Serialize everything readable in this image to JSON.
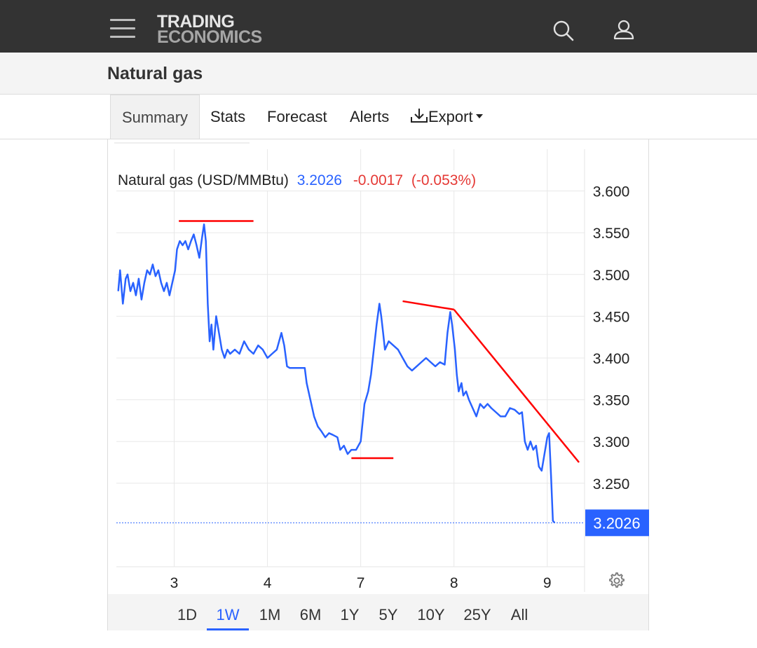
{
  "header": {
    "logo_line1": "TRADING",
    "logo_line2": "ECONOMICS",
    "menu_icon": "hamburger-menu-icon",
    "search_icon": "search-icon",
    "user_icon": "user-icon"
  },
  "page": {
    "title": "Natural gas"
  },
  "tabs": [
    {
      "label": "Summary",
      "active": true
    },
    {
      "label": "Stats"
    },
    {
      "label": "Forecast"
    },
    {
      "label": "Alerts"
    },
    {
      "label": "Export",
      "icon": "download-icon",
      "dropdown": true
    }
  ],
  "chart_data": {
    "type": "line",
    "title": "Natural gas (USD/MMBtu)",
    "last_value": "3.2026",
    "change": "-0.0017",
    "change_pct": "(-0.053%)",
    "x_tick_labels": [
      "3",
      "4",
      "7",
      "8",
      "9"
    ],
    "x_ticks": [
      0.6,
      1.6,
      2.6,
      3.6,
      4.6
    ],
    "xlim": [
      -0.02,
      5.0
    ],
    "y_tick_labels": [
      "3.600",
      "3.550",
      "3.500",
      "3.450",
      "3.400",
      "3.350",
      "3.300",
      "3.250"
    ],
    "y_ticks": [
      3.6,
      3.55,
      3.5,
      3.45,
      3.4,
      3.35,
      3.3,
      3.25
    ],
    "ylim": [
      3.15,
      3.65
    ],
    "grid": true,
    "colors": {
      "line": "#2962ff",
      "trendlines": "#ff0000",
      "negative": "#e53935",
      "price_tag_bg": "#2962ff"
    },
    "series": [
      {
        "values": [
          [
            0.0,
            3.48
          ],
          [
            0.02,
            3.505
          ],
          [
            0.05,
            3.465
          ],
          [
            0.08,
            3.495
          ],
          [
            0.1,
            3.5
          ],
          [
            0.13,
            3.48
          ],
          [
            0.16,
            3.49
          ],
          [
            0.19,
            3.475
          ],
          [
            0.22,
            3.495
          ],
          [
            0.25,
            3.47
          ],
          [
            0.28,
            3.49
          ],
          [
            0.31,
            3.505
          ],
          [
            0.34,
            3.5
          ],
          [
            0.37,
            3.512
          ],
          [
            0.4,
            3.498
          ],
          [
            0.43,
            3.505
          ],
          [
            0.46,
            3.49
          ],
          [
            0.49,
            3.48
          ],
          [
            0.52,
            3.49
          ],
          [
            0.55,
            3.475
          ],
          [
            0.58,
            3.49
          ],
          [
            0.61,
            3.505
          ],
          [
            0.63,
            3.53
          ],
          [
            0.66,
            3.54
          ],
          [
            0.69,
            3.535
          ],
          [
            0.72,
            3.54
          ],
          [
            0.75,
            3.53
          ],
          [
            0.78,
            3.54
          ],
          [
            0.81,
            3.548
          ],
          [
            0.84,
            3.535
          ],
          [
            0.87,
            3.52
          ],
          [
            0.9,
            3.545
          ],
          [
            0.92,
            3.56
          ],
          [
            0.94,
            3.54
          ],
          [
            0.96,
            3.465
          ],
          [
            0.98,
            3.42
          ],
          [
            1.0,
            3.44
          ],
          [
            1.02,
            3.41
          ],
          [
            1.05,
            3.45
          ],
          [
            1.08,
            3.43
          ],
          [
            1.11,
            3.41
          ],
          [
            1.14,
            3.4
          ],
          [
            1.17,
            3.41
          ],
          [
            1.2,
            3.405
          ],
          [
            1.25,
            3.41
          ],
          [
            1.3,
            3.405
          ],
          [
            1.35,
            3.42
          ],
          [
            1.4,
            3.41
          ],
          [
            1.45,
            3.405
          ],
          [
            1.5,
            3.415
          ],
          [
            1.55,
            3.41
          ],
          [
            1.6,
            3.4
          ],
          [
            1.65,
            3.405
          ],
          [
            1.7,
            3.41
          ],
          [
            1.75,
            3.43
          ],
          [
            1.78,
            3.415
          ],
          [
            1.81,
            3.39
          ],
          [
            1.84,
            3.388
          ],
          [
            1.9,
            3.388
          ],
          [
            1.95,
            3.388
          ],
          [
            2.0,
            3.388
          ],
          [
            2.02,
            3.37
          ],
          [
            2.06,
            3.35
          ],
          [
            2.1,
            3.33
          ],
          [
            2.14,
            3.318
          ],
          [
            2.18,
            3.312
          ],
          [
            2.22,
            3.305
          ],
          [
            2.26,
            3.31
          ],
          [
            2.3,
            3.308
          ],
          [
            2.35,
            3.305
          ],
          [
            2.38,
            3.29
          ],
          [
            2.42,
            3.295
          ],
          [
            2.46,
            3.285
          ],
          [
            2.5,
            3.29
          ],
          [
            2.55,
            3.29
          ],
          [
            2.6,
            3.3
          ],
          [
            2.64,
            3.345
          ],
          [
            2.68,
            3.36
          ],
          [
            2.71,
            3.38
          ],
          [
            2.74,
            3.41
          ],
          [
            2.77,
            3.44
          ],
          [
            2.8,
            3.465
          ],
          [
            2.82,
            3.45
          ],
          [
            2.84,
            3.43
          ],
          [
            2.86,
            3.41
          ],
          [
            2.9,
            3.42
          ],
          [
            2.95,
            3.415
          ],
          [
            3.0,
            3.41
          ],
          [
            3.05,
            3.4
          ],
          [
            3.1,
            3.39
          ],
          [
            3.15,
            3.385
          ],
          [
            3.2,
            3.39
          ],
          [
            3.25,
            3.395
          ],
          [
            3.3,
            3.4
          ],
          [
            3.35,
            3.395
          ],
          [
            3.4,
            3.39
          ],
          [
            3.45,
            3.395
          ],
          [
            3.5,
            3.392
          ],
          [
            3.53,
            3.43
          ],
          [
            3.56,
            3.455
          ],
          [
            3.58,
            3.44
          ],
          [
            3.61,
            3.41
          ],
          [
            3.63,
            3.38
          ],
          [
            3.65,
            3.36
          ],
          [
            3.68,
            3.37
          ],
          [
            3.7,
            3.355
          ],
          [
            3.73,
            3.36
          ],
          [
            3.76,
            3.35
          ],
          [
            3.8,
            3.34
          ],
          [
            3.84,
            3.33
          ],
          [
            3.88,
            3.345
          ],
          [
            3.92,
            3.34
          ],
          [
            3.96,
            3.345
          ],
          [
            4.0,
            3.34
          ],
          [
            4.05,
            3.335
          ],
          [
            4.1,
            3.33
          ],
          [
            4.15,
            3.33
          ],
          [
            4.2,
            3.34
          ],
          [
            4.25,
            3.338
          ],
          [
            4.3,
            3.333
          ],
          [
            4.33,
            3.335
          ],
          [
            4.36,
            3.3
          ],
          [
            4.39,
            3.29
          ],
          [
            4.42,
            3.3
          ],
          [
            4.45,
            3.29
          ],
          [
            4.48,
            3.295
          ],
          [
            4.51,
            3.27
          ],
          [
            4.54,
            3.265
          ],
          [
            4.57,
            3.285
          ],
          [
            4.6,
            3.305
          ],
          [
            4.62,
            3.31
          ],
          [
            4.64,
            3.26
          ],
          [
            4.66,
            3.205
          ],
          [
            4.68,
            3.2026
          ]
        ]
      }
    ],
    "annotations": [
      {
        "type": "hline",
        "x": [
          0.65,
          1.45
        ],
        "y": 3.564
      },
      {
        "type": "hline",
        "x": [
          2.5,
          2.95
        ],
        "y": 3.28
      },
      {
        "type": "line",
        "from": [
          3.05,
          3.468
        ],
        "to": [
          3.6,
          3.458
        ]
      },
      {
        "type": "line",
        "from": [
          3.6,
          3.458
        ],
        "to": [
          4.94,
          3.275
        ]
      }
    ],
    "settings_icon": "gear-icon"
  },
  "ranges": [
    {
      "label": "1D"
    },
    {
      "label": "1W",
      "active": true
    },
    {
      "label": "1M"
    },
    {
      "label": "6M"
    },
    {
      "label": "1Y"
    },
    {
      "label": "5Y"
    },
    {
      "label": "10Y"
    },
    {
      "label": "25Y"
    },
    {
      "label": "All"
    }
  ]
}
